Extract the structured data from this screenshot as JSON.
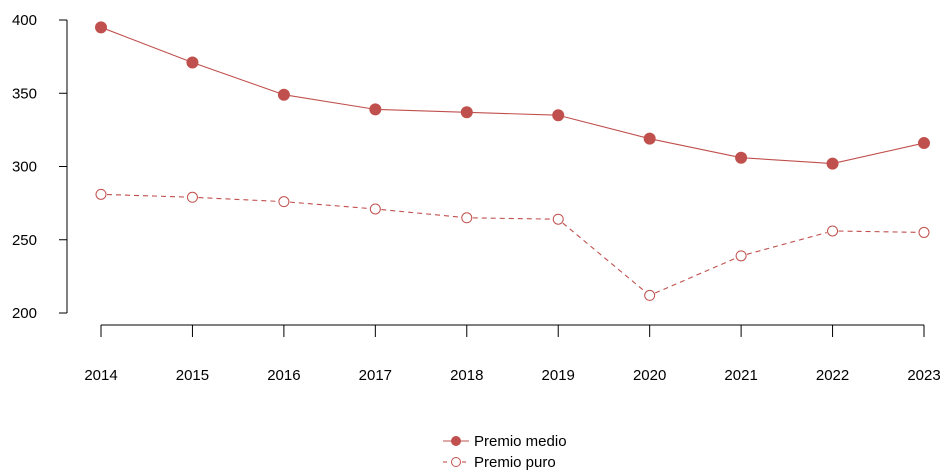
{
  "chart_data": {
    "type": "line",
    "title": "",
    "xlabel": "",
    "ylabel": "",
    "categories": [
      "2014",
      "2015",
      "2016",
      "2017",
      "2018",
      "2019",
      "2020",
      "2021",
      "2022",
      "2023"
    ],
    "ylim": [
      200,
      400
    ],
    "yticks": [
      "200",
      "250",
      "300",
      "350",
      "400"
    ],
    "grid": false,
    "legend_position": "bottom-center",
    "color": "#c0504d",
    "series": [
      {
        "name": "Premio medio",
        "line_style": "solid",
        "marker": "filled-circle",
        "values": [
          395,
          371,
          349,
          339,
          337,
          335,
          319,
          306,
          302,
          316
        ]
      },
      {
        "name": "Premio puro",
        "line_style": "dashed",
        "marker": "open-circle",
        "values": [
          281,
          279,
          276,
          271,
          265,
          264,
          212,
          239,
          256,
          255
        ]
      }
    ]
  }
}
